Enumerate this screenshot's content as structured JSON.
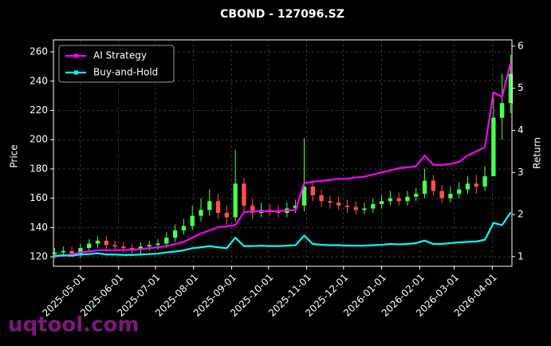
{
  "chart_data": {
    "type": "candlestick",
    "title": "CBOND - 127096.SZ",
    "ylabel": "Price",
    "y2label": "Return",
    "watermark": "uqtool.com",
    "x": [
      "2025-04-10",
      "2025-04-17",
      "2025-04-24",
      "2025-05-01",
      "2025-05-08",
      "2025-05-15",
      "2025-05-22",
      "2025-05-29",
      "2025-06-05",
      "2025-06-12",
      "2025-06-19",
      "2025-06-26",
      "2025-07-03",
      "2025-07-10",
      "2025-07-17",
      "2025-07-24",
      "2025-07-31",
      "2025-08-07",
      "2025-08-14",
      "2025-08-21",
      "2025-08-28",
      "2025-09-04",
      "2025-09-11",
      "2025-09-18",
      "2025-09-25",
      "2025-10-02",
      "2025-10-09",
      "2025-10-16",
      "2025-10-23",
      "2025-10-30",
      "2025-11-06",
      "2025-11-13",
      "2025-11-20",
      "2025-11-27",
      "2025-12-04",
      "2025-12-11",
      "2025-12-18",
      "2025-12-25",
      "2026-01-01",
      "2026-01-08",
      "2026-01-15",
      "2026-01-22",
      "2026-01-29",
      "2026-02-05",
      "2026-02-12",
      "2026-02-19",
      "2026-02-26",
      "2026-03-05",
      "2026-03-12",
      "2026-03-19",
      "2026-03-26",
      "2026-04-02",
      "2026-04-09",
      "2026-04-16"
    ],
    "open": [
      122,
      123,
      124,
      122,
      126,
      129,
      131,
      128,
      127,
      126,
      125,
      127,
      128,
      129,
      133,
      138,
      141,
      148,
      152,
      158,
      150,
      147,
      170,
      155,
      150,
      152,
      151,
      150,
      153,
      155,
      168,
      162,
      158,
      157,
      155,
      154,
      152,
      153,
      156,
      158,
      160,
      158,
      161,
      163,
      172,
      165,
      160,
      163,
      166,
      170,
      168,
      175,
      215,
      225
    ],
    "high": [
      126,
      127,
      127,
      129,
      132,
      134,
      134,
      131,
      130,
      129,
      130,
      131,
      132,
      137,
      142,
      146,
      155,
      160,
      166,
      163,
      155,
      193,
      174,
      160,
      157,
      156,
      155,
      157,
      159,
      201,
      172,
      166,
      162,
      161,
      159,
      158,
      157,
      160,
      162,
      165,
      164,
      165,
      167,
      180,
      176,
      169,
      168,
      171,
      175,
      176,
      182,
      230,
      245,
      258
    ],
    "low": [
      119,
      120,
      120,
      119,
      123,
      126,
      125,
      124,
      123,
      122,
      122,
      124,
      125,
      126,
      130,
      135,
      138,
      144,
      148,
      146,
      142,
      144,
      150,
      146,
      147,
      148,
      147,
      147,
      150,
      151,
      158,
      154,
      153,
      152,
      150,
      149,
      149,
      150,
      153,
      155,
      155,
      155,
      158,
      160,
      162,
      157,
      157,
      160,
      163,
      163,
      165,
      175,
      200,
      218
    ],
    "close": [
      123,
      124,
      122,
      126,
      129,
      131,
      128,
      127,
      126,
      125,
      127,
      128,
      129,
      133,
      138,
      141,
      148,
      152,
      158,
      150,
      147,
      170,
      155,
      150,
      152,
      151,
      150,
      153,
      155,
      168,
      162,
      158,
      157,
      155,
      154,
      152,
      153,
      156,
      158,
      160,
      158,
      161,
      163,
      172,
      165,
      160,
      163,
      166,
      170,
      168,
      175,
      215,
      225,
      245
    ],
    "up_color": "#4cff4c",
    "down_color": "#ff5050",
    "series": [
      {
        "name": "AI Strategy",
        "color": "#ff00ff",
        "axis": "y2",
        "values": [
          1.0,
          1.02,
          1.05,
          1.1,
          1.12,
          1.15,
          1.15,
          1.15,
          1.16,
          1.16,
          1.18,
          1.2,
          1.22,
          1.25,
          1.3,
          1.35,
          1.45,
          1.55,
          1.62,
          1.7,
          1.72,
          1.75,
          2.05,
          2.08,
          2.08,
          2.08,
          2.08,
          2.1,
          2.1,
          2.75,
          2.78,
          2.8,
          2.82,
          2.85,
          2.85,
          2.88,
          2.9,
          2.95,
          3.0,
          3.05,
          3.1,
          3.12,
          3.15,
          3.4,
          3.18,
          3.18,
          3.2,
          3.25,
          3.4,
          3.5,
          3.6,
          4.9,
          4.8,
          5.6
        ]
      },
      {
        "name": "Buy-and-Hold",
        "color": "#00ffff",
        "axis": "y2",
        "values": [
          1.02,
          1.03,
          1.02,
          1.05,
          1.06,
          1.08,
          1.05,
          1.05,
          1.04,
          1.04,
          1.05,
          1.06,
          1.07,
          1.1,
          1.12,
          1.15,
          1.2,
          1.22,
          1.25,
          1.22,
          1.2,
          1.45,
          1.25,
          1.25,
          1.26,
          1.25,
          1.25,
          1.26,
          1.27,
          1.5,
          1.3,
          1.28,
          1.27,
          1.27,
          1.26,
          1.26,
          1.26,
          1.27,
          1.28,
          1.3,
          1.29,
          1.3,
          1.32,
          1.38,
          1.3,
          1.3,
          1.32,
          1.34,
          1.35,
          1.36,
          1.4,
          1.8,
          1.75,
          2.05
        ]
      }
    ],
    "xlim": [
      "2025-04-09",
      "2026-04-17"
    ],
    "xticks": [
      "2025-05-01",
      "2025-06-01",
      "2025-07-01",
      "2025-08-01",
      "2025-09-01",
      "2025-10-01",
      "2025-11-01",
      "2025-12-01",
      "2026-01-01",
      "2026-02-01",
      "2026-03-01",
      "2026-04-01"
    ],
    "ylim": [
      113.5,
      268.2
    ],
    "yticks": [
      120,
      140,
      160,
      180,
      200,
      220,
      240,
      260
    ],
    "y2lim": [
      0.77,
      6.15
    ],
    "y2ticks": [
      1,
      2,
      3,
      4,
      5,
      6
    ],
    "grid": true,
    "legend": "upper left"
  }
}
